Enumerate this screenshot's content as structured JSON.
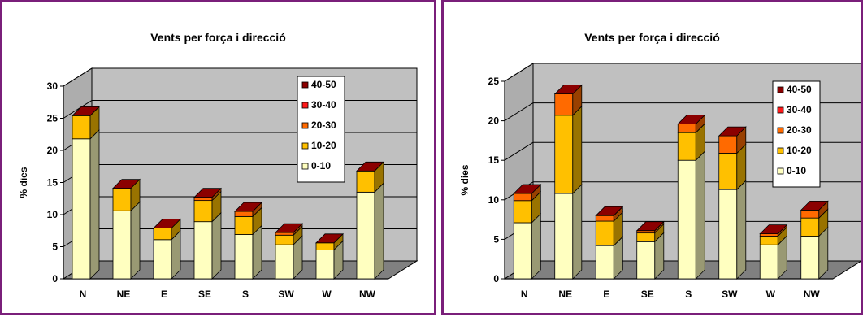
{
  "colors": {
    "segments": [
      "#ffffc0",
      "#ffc000",
      "#ff6a00",
      "#ff1a1a",
      "#8b0000"
    ],
    "wall": "#c0c0c0",
    "floor": "#808080",
    "frame": "#7a1f7a"
  },
  "chart_data": [
    {
      "type": "bar",
      "stacked": true,
      "three_d": true,
      "title": "Vents per força i direcció",
      "ylabel": "% dies",
      "xlabel": "",
      "categories": [
        "N",
        "NE",
        "E",
        "SE",
        "S",
        "SW",
        "W",
        "NW"
      ],
      "ylim": [
        0,
        30
      ],
      "yticks": [
        0,
        5,
        10,
        15,
        20,
        25,
        30
      ],
      "grid": true,
      "legend_position": "right",
      "series": [
        {
          "name": "0-10",
          "values": [
            21.8,
            10.6,
            6.1,
            8.9,
            6.9,
            5.3,
            4.5,
            13.5
          ]
        },
        {
          "name": "10-20",
          "values": [
            3.6,
            3.5,
            1.8,
            3.3,
            2.8,
            1.5,
            1.1,
            3.3
          ]
        },
        {
          "name": "20-30",
          "values": [
            0,
            0,
            0,
            0.5,
            0.8,
            0.4,
            0,
            0
          ]
        },
        {
          "name": "30-40",
          "values": [
            0,
            0,
            0,
            0,
            0,
            0,
            0,
            0
          ]
        },
        {
          "name": "40-50",
          "values": [
            0,
            0,
            0,
            0,
            0,
            0,
            0,
            0
          ]
        }
      ]
    },
    {
      "type": "bar",
      "stacked": true,
      "three_d": true,
      "title": "Vents per força i direcció",
      "ylabel": "% dies",
      "xlabel": "",
      "categories": [
        "N",
        "NE",
        "E",
        "SE",
        "S",
        "SW",
        "W",
        "NW"
      ],
      "ylim": [
        0,
        25
      ],
      "yticks": [
        0,
        5,
        10,
        15,
        20,
        25
      ],
      "grid": true,
      "legend_position": "right",
      "series": [
        {
          "name": "0-10",
          "values": [
            7.1,
            10.8,
            4.2,
            4.7,
            15.0,
            11.3,
            4.3,
            5.4
          ]
        },
        {
          "name": "10-20",
          "values": [
            2.8,
            9.9,
            3.1,
            1.1,
            3.5,
            4.6,
            1.1,
            2.3
          ]
        },
        {
          "name": "20-30",
          "values": [
            0.9,
            2.7,
            0.7,
            0.3,
            1.1,
            2.2,
            0.3,
            1.0
          ]
        },
        {
          "name": "30-40",
          "values": [
            0,
            0,
            0,
            0,
            0,
            0,
            0,
            0
          ]
        },
        {
          "name": "40-50",
          "values": [
            0,
            0,
            0,
            0,
            0,
            0,
            0,
            0
          ]
        }
      ]
    }
  ]
}
